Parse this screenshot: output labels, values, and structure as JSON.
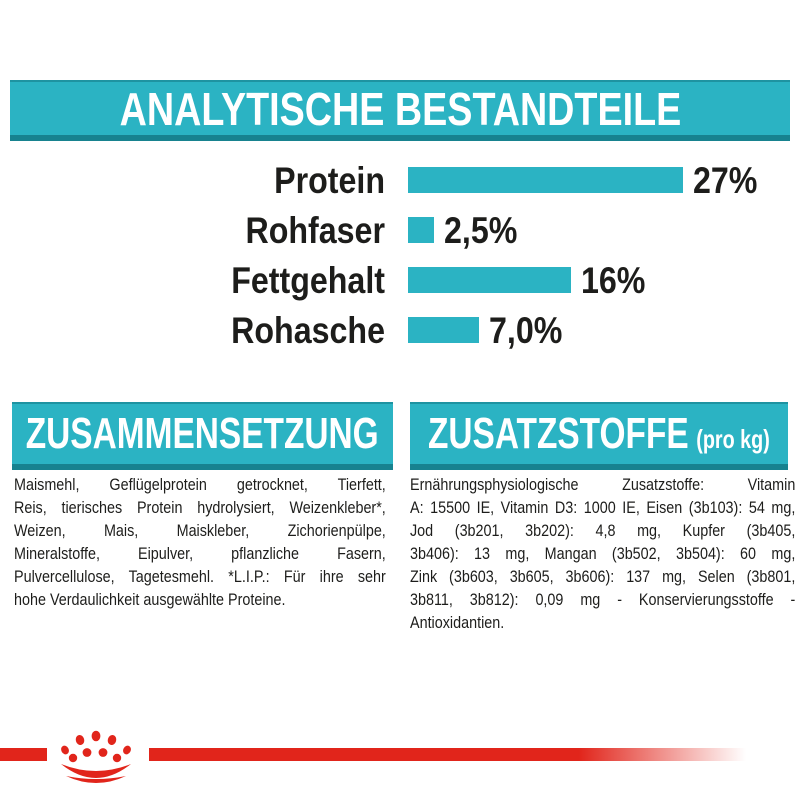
{
  "colors": {
    "teal": "#2bb3c3",
    "teal_dark": "#17828f",
    "red": "#e1251b",
    "ink": "#1d1d1b"
  },
  "header": {
    "title": "ANALYTISCHE BESTANDTEILE"
  },
  "chart_data": {
    "type": "bar",
    "orientation": "horizontal",
    "title": "ANALYTISCHE BESTANDTEILE",
    "categories": [
      "Protein",
      "Rohfaser",
      "Fettgehalt",
      "Rohasche"
    ],
    "values": [
      27,
      2.5,
      16,
      7.0
    ],
    "value_labels": [
      "27%",
      "2,5%",
      "16%",
      "7,0%"
    ],
    "unit": "%",
    "xlim": [
      0,
      30
    ],
    "bar_color": "#2bb3c3",
    "grid": false,
    "legend": false
  },
  "sections": {
    "composition": {
      "title": "ZUSAMMENSETZUNG",
      "lines": [
        "Maismehl, Geflügelprotein getrocknet, Tierfett,",
        "Reis, tierisches Protein hydrolysiert, Weizenkleber*,",
        "Weizen, Mais, Maiskleber, Zichorienpülpe,",
        "Mineralstoffe, Eipulver, pflanzliche Fasern,",
        "Pulvercellulose, Tagetesmehl. *L.I.P.: Für ihre sehr",
        "hohe Verdaulichkeit ausgewählte Proteine."
      ],
      "full_text": "Maismehl, Geflügelprotein getrocknet, Tierfett, Reis, tierisches Protein hydrolysiert, Weizenkleber*, Weizen, Mais, Maiskleber, Zichorienpülpe, Mineralstoffe, Eipulver, pflanzliche Fasern, Pulvercellulose, Tagetesmehl. *L.I.P.: Für ihre sehr hohe Verdaulichkeit ausgewählte Proteine."
    },
    "additives": {
      "title": "ZUSATZSTOFFE",
      "title_suffix": "(pro kg)",
      "lines": [
        "Ernährungsphysiologische Zusatzstoffe: Vitamin",
        "A: 15500 IE, Vitamin D3: 1000 IE, Eisen (3b103): 54 mg,",
        "Jod (3b201, 3b202): 4,8 mg, Kupfer (3b405,",
        "3b406): 13 mg, Mangan (3b502, 3b504): 60 mg,",
        "Zink (3b603, 3b605, 3b606): 137 mg, Selen (3b801,",
        "3b811, 3b812): 0,09 mg - Konservierungsstoffe -",
        "Antioxidantien."
      ],
      "full_text": "Ernährungsphysiologische Zusatzstoffe: Vitamin A: 15500 IE, Vitamin D3: 1000 IE, Eisen (3b103): 54 mg, Jod (3b201, 3b202): 4,8 mg, Kupfer (3b405, 3b406): 13 mg, Mangan (3b502, 3b504): 60 mg, Zink (3b603, 3b605, 3b606): 137 mg, Selen (3b801, 3b811, 3b812): 0,09 mg - Konservierungsstoffe - Antioxidantien."
    }
  },
  "footer": {
    "brand_mark": "royal-canin-crown-logo"
  }
}
